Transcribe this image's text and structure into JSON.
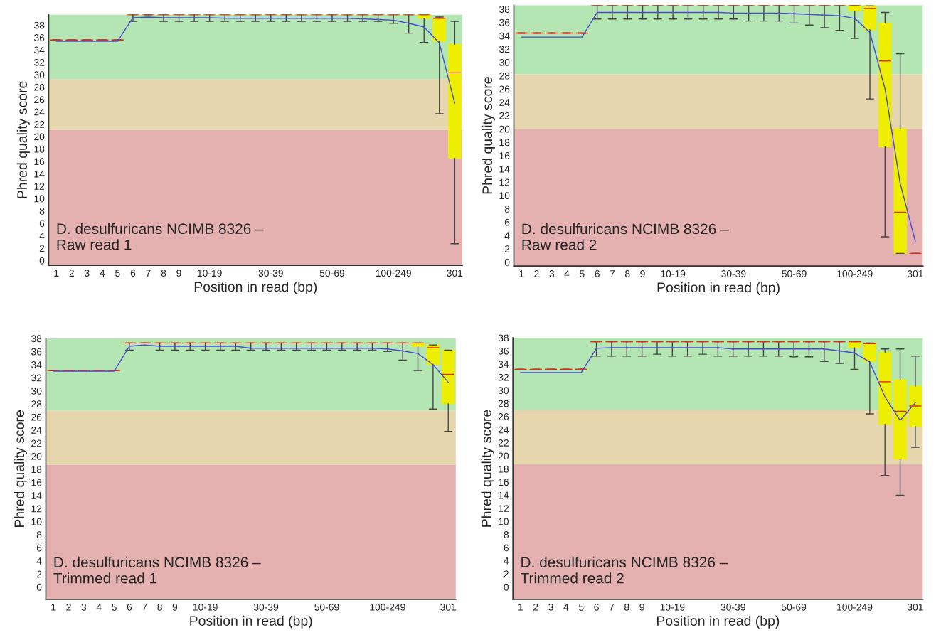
{
  "chart_data": [
    {
      "type": "box",
      "xlabel": "Position in read (bp)",
      "ylabel": "Phred quality score",
      "annotations": [
        "D. desulfuricans NCIMB 8326 –\nRaw read 1"
      ],
      "categories": [
        "1",
        "2",
        "3",
        "4",
        "5",
        "6",
        "7",
        "8",
        "9",
        null,
        "10-19",
        null,
        null,
        null,
        "30-39",
        null,
        null,
        null,
        "50-69",
        null,
        null,
        null,
        "100-249",
        null,
        null,
        null,
        "301"
      ],
      "ylim": [
        -0.8,
        39.7
      ],
      "yticks": [
        0,
        2,
        4,
        6,
        8,
        10,
        12,
        14,
        16,
        18,
        20,
        22,
        24,
        26,
        28,
        30,
        32,
        34,
        36,
        38
      ],
      "bands": [
        {
          "axis": "y",
          "from": -0.8,
          "to": 21.1,
          "color": "#e5b0b0"
        },
        {
          "axis": "y",
          "from": 21.1,
          "to": 29.3,
          "color": "#e6d6ad"
        },
        {
          "axis": "y",
          "from": 29.3,
          "to": 39.7,
          "color": "#b3e6b3"
        }
      ],
      "series": [
        {
          "color": "#eeee00",
          "boxes": [
            {
              "low": 35.6,
              "q1": 35.6,
              "median": 35.6,
              "q3": 35.6,
              "high": 35.6
            },
            {
              "low": 35.6,
              "q1": 35.6,
              "median": 35.6,
              "q3": 35.6,
              "high": 35.6
            },
            {
              "low": 35.6,
              "q1": 35.6,
              "median": 35.6,
              "q3": 35.6,
              "high": 35.6
            },
            {
              "low": 35.6,
              "q1": 35.6,
              "median": 35.6,
              "q3": 35.6,
              "high": 35.6
            },
            {
              "low": 35.6,
              "q1": 35.6,
              "median": 35.6,
              "q3": 35.6,
              "high": 35.6
            },
            {
              "low": 38.6,
              "q1": 39.7,
              "median": 39.7,
              "q3": 39.7,
              "high": 39.7
            },
            {
              "low": 39.7,
              "q1": 39.7,
              "median": 39.7,
              "q3": 39.7,
              "high": 39.7
            },
            {
              "low": 38.6,
              "q1": 39.7,
              "median": 39.7,
              "q3": 39.7,
              "high": 39.7
            },
            {
              "low": 38.6,
              "q1": 39.7,
              "median": 39.7,
              "q3": 39.7,
              "high": 39.7
            },
            {
              "low": 38.6,
              "q1": 39.7,
              "median": 39.7,
              "q3": 39.7,
              "high": 39.7
            },
            {
              "low": 38.6,
              "q1": 39.7,
              "median": 39.7,
              "q3": 39.7,
              "high": 39.7
            },
            {
              "low": 38.6,
              "q1": 39.7,
              "median": 39.7,
              "q3": 39.7,
              "high": 39.7
            },
            {
              "low": 38.6,
              "q1": 39.7,
              "median": 39.7,
              "q3": 39.7,
              "high": 39.7
            },
            {
              "low": 38.6,
              "q1": 39.7,
              "median": 39.7,
              "q3": 39.7,
              "high": 39.7
            },
            {
              "low": 38.6,
              "q1": 39.7,
              "median": 39.7,
              "q3": 39.7,
              "high": 39.7
            },
            {
              "low": 38.6,
              "q1": 39.7,
              "median": 39.7,
              "q3": 39.7,
              "high": 39.7
            },
            {
              "low": 38.6,
              "q1": 39.7,
              "median": 39.7,
              "q3": 39.7,
              "high": 39.7
            },
            {
              "low": 38.6,
              "q1": 39.7,
              "median": 39.7,
              "q3": 39.7,
              "high": 39.7
            },
            {
              "low": 38.6,
              "q1": 39.7,
              "median": 39.7,
              "q3": 39.7,
              "high": 39.7
            },
            {
              "low": 38.6,
              "q1": 39.7,
              "median": 39.7,
              "q3": 39.7,
              "high": 39.7
            },
            {
              "low": 38.6,
              "q1": 39.7,
              "median": 39.7,
              "q3": 39.7,
              "high": 39.7
            },
            {
              "low": 38.6,
              "q1": 39.7,
              "median": 39.7,
              "q3": 39.7,
              "high": 39.7
            },
            {
              "low": 38.3,
              "q1": 39.7,
              "median": 39.7,
              "q3": 39.7,
              "high": 39.7
            },
            {
              "low": 36.7,
              "q1": 39.7,
              "median": 39.7,
              "q3": 39.7,
              "high": 39.7
            },
            {
              "low": 35.2,
              "q1": 39.1,
              "median": 39.7,
              "q3": 39.7,
              "high": 39.7
            },
            {
              "low": 23.7,
              "q1": 35.4,
              "median": 39.1,
              "q3": 39.1,
              "high": 39.3
            },
            {
              "low": 2.7,
              "q1": 16.5,
              "median": 30.3,
              "q3": 34.9,
              "high": 38.6
            }
          ]
        },
        {
          "type": "line",
          "color": "#4a4ad0",
          "values": [
            35.4,
            35.4,
            35.4,
            35.4,
            35.4,
            39.2,
            39.3,
            39.2,
            39.2,
            39.2,
            39.2,
            39.1,
            39.1,
            39.1,
            39.1,
            39.1,
            39.1,
            39.1,
            39.1,
            39.1,
            39.0,
            38.9,
            38.8,
            38.3,
            37.7,
            35.1,
            25.4
          ]
        }
      ]
    },
    {
      "type": "box",
      "xlabel": "Position in read (bp)",
      "ylabel": "Phred quality score",
      "annotations": [
        "D. desulfuricans NCIMB 8326 –\nRaw read 2"
      ],
      "categories": [
        "1",
        "2",
        "3",
        "4",
        "5",
        "6",
        "7",
        "8",
        "9",
        null,
        "10-19",
        null,
        null,
        null,
        "30-39",
        null,
        null,
        null,
        "50-69",
        null,
        null,
        null,
        "100-249",
        null,
        null,
        null,
        "301"
      ],
      "ylim": [
        -0.6,
        38.6
      ],
      "yticks": [
        0,
        2,
        4,
        6,
        8,
        10,
        12,
        14,
        16,
        18,
        20,
        22,
        24,
        26,
        28,
        30,
        32,
        34,
        36,
        38
      ],
      "bands": [
        {
          "axis": "y",
          "from": -0.6,
          "to": 20.0,
          "color": "#e5b0b0"
        },
        {
          "axis": "y",
          "from": 20.0,
          "to": 28.2,
          "color": "#e6d6ad"
        },
        {
          "axis": "y",
          "from": 28.2,
          "to": 38.6,
          "color": "#b3e6b3"
        }
      ],
      "series": [
        {
          "color": "#eeee00",
          "boxes": [
            {
              "low": 34.4,
              "q1": 34.4,
              "median": 34.4,
              "q3": 34.4,
              "high": 34.4
            },
            {
              "low": 34.4,
              "q1": 34.4,
              "median": 34.4,
              "q3": 34.4,
              "high": 34.4
            },
            {
              "low": 34.4,
              "q1": 34.4,
              "median": 34.4,
              "q3": 34.4,
              "high": 34.4
            },
            {
              "low": 34.4,
              "q1": 34.4,
              "median": 34.4,
              "q3": 34.4,
              "high": 34.4
            },
            {
              "low": 34.4,
              "q1": 34.4,
              "median": 34.4,
              "q3": 34.4,
              "high": 34.4
            },
            {
              "low": 36.5,
              "q1": 38.6,
              "median": 38.6,
              "q3": 38.6,
              "high": 38.6
            },
            {
              "low": 36.5,
              "q1": 38.6,
              "median": 38.6,
              "q3": 38.6,
              "high": 38.6
            },
            {
              "low": 36.5,
              "q1": 38.6,
              "median": 38.6,
              "q3": 38.6,
              "high": 38.6
            },
            {
              "low": 36.5,
              "q1": 38.6,
              "median": 38.6,
              "q3": 38.6,
              "high": 38.6
            },
            {
              "low": 36.5,
              "q1": 38.6,
              "median": 38.6,
              "q3": 38.6,
              "high": 38.6
            },
            {
              "low": 36.5,
              "q1": 38.6,
              "median": 38.6,
              "q3": 38.6,
              "high": 38.6
            },
            {
              "low": 36.5,
              "q1": 38.6,
              "median": 38.6,
              "q3": 38.6,
              "high": 38.6
            },
            {
              "low": 36.5,
              "q1": 38.6,
              "median": 38.6,
              "q3": 38.6,
              "high": 38.6
            },
            {
              "low": 36.5,
              "q1": 38.6,
              "median": 38.6,
              "q3": 38.6,
              "high": 38.6
            },
            {
              "low": 36.5,
              "q1": 38.6,
              "median": 38.6,
              "q3": 38.6,
              "high": 38.6
            },
            {
              "low": 36.2,
              "q1": 38.6,
              "median": 38.6,
              "q3": 38.6,
              "high": 38.6
            },
            {
              "low": 36.2,
              "q1": 38.6,
              "median": 38.6,
              "q3": 38.6,
              "high": 38.6
            },
            {
              "low": 36.2,
              "q1": 38.6,
              "median": 38.6,
              "q3": 38.6,
              "high": 38.6
            },
            {
              "low": 35.9,
              "q1": 38.6,
              "median": 38.6,
              "q3": 38.6,
              "high": 38.6
            },
            {
              "low": 35.6,
              "q1": 38.6,
              "median": 38.6,
              "q3": 38.6,
              "high": 38.6
            },
            {
              "low": 35.2,
              "q1": 38.6,
              "median": 38.6,
              "q3": 38.6,
              "high": 38.6
            },
            {
              "low": 34.8,
              "q1": 38.6,
              "median": 38.6,
              "q3": 38.6,
              "high": 38.6
            },
            {
              "low": 33.6,
              "q1": 37.7,
              "median": 38.6,
              "q3": 38.6,
              "high": 38.6
            },
            {
              "low": 24.5,
              "q1": 34.9,
              "median": 38.1,
              "q3": 38.5,
              "high": 38.5
            },
            {
              "low": 3.8,
              "q1": 17.3,
              "median": 30.2,
              "q3": 35.9,
              "high": 37.5
            },
            {
              "low": 1.3,
              "q1": 1.3,
              "median": 7.5,
              "q3": 20.0,
              "high": 31.3
            },
            {
              "low": 1.3,
              "q1": 1.3,
              "median": 1.3,
              "q3": 1.3,
              "high": 1.3
            }
          ]
        },
        {
          "type": "line",
          "color": "#4a4ad0",
          "values": [
            33.8,
            33.8,
            33.8,
            33.8,
            33.8,
            37.5,
            37.5,
            37.5,
            37.5,
            37.5,
            37.5,
            37.5,
            37.5,
            37.5,
            37.4,
            37.4,
            37.4,
            37.4,
            37.3,
            37.2,
            37.1,
            37.0,
            36.6,
            34.5,
            26.0,
            11.8,
            3.1
          ]
        }
      ]
    },
    {
      "type": "box",
      "xlabel": "Position in read (bp)",
      "ylabel": "Phred quality score",
      "annotations": [
        "D. desulfuricans NCIMB 8326 –\nTrimmed read 1"
      ],
      "categories": [
        "1",
        "2",
        "3",
        "4",
        "5",
        "6",
        "7",
        "8",
        "9",
        null,
        "10-19",
        null,
        null,
        null,
        "30-39",
        null,
        null,
        null,
        "50-69",
        null,
        null,
        null,
        "100-249",
        null,
        null,
        null,
        "301"
      ],
      "ylim": [
        -1.9,
        38.0
      ],
      "yticks": [
        0,
        2,
        4,
        6,
        8,
        10,
        12,
        14,
        16,
        18,
        20,
        22,
        24,
        26,
        28,
        30,
        32,
        34,
        36,
        38
      ],
      "bands": [
        {
          "axis": "y",
          "from": -1.9,
          "to": 18.7,
          "color": "#e5b0b0"
        },
        {
          "axis": "y",
          "from": 18.7,
          "to": 27.0,
          "color": "#e6d6ad"
        },
        {
          "axis": "y",
          "from": 27.0,
          "to": 38.0,
          "color": "#b3e6b3"
        }
      ],
      "series": [
        {
          "color": "#eeee00",
          "boxes": [
            {
              "low": 33.1,
              "q1": 33.1,
              "median": 33.1,
              "q3": 33.1,
              "high": 33.1
            },
            {
              "low": 33.1,
              "q1": 33.1,
              "median": 33.1,
              "q3": 33.1,
              "high": 33.1
            },
            {
              "low": 33.1,
              "q1": 33.1,
              "median": 33.1,
              "q3": 33.1,
              "high": 33.1
            },
            {
              "low": 33.1,
              "q1": 33.1,
              "median": 33.1,
              "q3": 33.1,
              "high": 33.1
            },
            {
              "low": 33.1,
              "q1": 33.1,
              "median": 33.1,
              "q3": 33.1,
              "high": 33.1
            },
            {
              "low": 36.2,
              "q1": 37.3,
              "median": 37.3,
              "q3": 37.3,
              "high": 37.3
            },
            {
              "low": 37.3,
              "q1": 37.3,
              "median": 37.3,
              "q3": 37.3,
              "high": 37.3
            },
            {
              "low": 36.2,
              "q1": 37.3,
              "median": 37.3,
              "q3": 37.3,
              "high": 37.3
            },
            {
              "low": 36.2,
              "q1": 37.3,
              "median": 37.3,
              "q3": 37.3,
              "high": 37.3
            },
            {
              "low": 36.2,
              "q1": 37.3,
              "median": 37.3,
              "q3": 37.3,
              "high": 37.3
            },
            {
              "low": 36.2,
              "q1": 37.3,
              "median": 37.3,
              "q3": 37.3,
              "high": 37.3
            },
            {
              "low": 36.2,
              "q1": 37.3,
              "median": 37.3,
              "q3": 37.3,
              "high": 37.3
            },
            {
              "low": 36.2,
              "q1": 37.3,
              "median": 37.3,
              "q3": 37.3,
              "high": 37.3
            },
            {
              "low": 36.2,
              "q1": 37.3,
              "median": 37.3,
              "q3": 37.3,
              "high": 37.3
            },
            {
              "low": 36.2,
              "q1": 37.3,
              "median": 37.3,
              "q3": 37.3,
              "high": 37.3
            },
            {
              "low": 36.2,
              "q1": 37.3,
              "median": 37.3,
              "q3": 37.3,
              "high": 37.3
            },
            {
              "low": 36.2,
              "q1": 37.3,
              "median": 37.3,
              "q3": 37.3,
              "high": 37.3
            },
            {
              "low": 36.2,
              "q1": 37.3,
              "median": 37.3,
              "q3": 37.3,
              "high": 37.3
            },
            {
              "low": 36.2,
              "q1": 37.3,
              "median": 37.3,
              "q3": 37.3,
              "high": 37.3
            },
            {
              "low": 36.2,
              "q1": 37.3,
              "median": 37.3,
              "q3": 37.3,
              "high": 37.3
            },
            {
              "low": 36.2,
              "q1": 37.3,
              "median": 37.3,
              "q3": 37.3,
              "high": 37.3
            },
            {
              "low": 36.2,
              "q1": 37.3,
              "median": 37.3,
              "q3": 37.3,
              "high": 37.3
            },
            {
              "low": 36.0,
              "q1": 37.3,
              "median": 37.3,
              "q3": 37.3,
              "high": 37.3
            },
            {
              "low": 34.7,
              "q1": 37.3,
              "median": 37.3,
              "q3": 37.3,
              "high": 37.3
            },
            {
              "low": 33.1,
              "q1": 36.8,
              "median": 37.3,
              "q3": 37.3,
              "high": 37.3
            },
            {
              "low": 27.2,
              "q1": 34.0,
              "median": 36.6,
              "q3": 37.0,
              "high": 37.0
            },
            {
              "low": 23.8,
              "q1": 28.0,
              "median": 32.5,
              "q3": 36.2,
              "high": 36.2
            }
          ]
        },
        {
          "type": "line",
          "color": "#4a4ad0",
          "values": [
            33.0,
            33.0,
            33.0,
            33.0,
            33.0,
            36.8,
            37.0,
            36.8,
            36.8,
            36.8,
            36.8,
            36.8,
            36.8,
            36.5,
            36.5,
            36.5,
            36.5,
            36.5,
            36.5,
            36.5,
            36.5,
            36.5,
            36.4,
            36.1,
            35.7,
            34.0,
            31.3
          ]
        }
      ]
    },
    {
      "type": "box",
      "xlabel": "Position in read (bp)",
      "ylabel": "Phred quality score",
      "annotations": [
        "D. desulfuricans NCIMB 8326 –\nTrimmed read 2"
      ],
      "categories": [
        "1",
        "2",
        "3",
        "4",
        "5",
        "6",
        "7",
        "8",
        "9",
        null,
        "10-19",
        null,
        null,
        null,
        "30-39",
        null,
        null,
        null,
        "50-69",
        null,
        null,
        null,
        "100-249",
        null,
        null,
        null,
        "301"
      ],
      "ylim": [
        -1.9,
        38.0
      ],
      "yticks": [
        0,
        2,
        4,
        6,
        8,
        10,
        12,
        14,
        16,
        18,
        20,
        22,
        24,
        26,
        28,
        30,
        32,
        34,
        36,
        38
      ],
      "bands": [
        {
          "axis": "y",
          "from": -1.9,
          "to": 18.7,
          "color": "#e5b0b0"
        },
        {
          "axis": "y",
          "from": 18.7,
          "to": 27.0,
          "color": "#e6d6ad"
        },
        {
          "axis": "y",
          "from": 27.0,
          "to": 38.0,
          "color": "#b3e6b3"
        }
      ],
      "series": [
        {
          "color": "#eeee00",
          "boxes": [
            {
              "low": 33.2,
              "q1": 33.2,
              "median": 33.2,
              "q3": 33.2,
              "high": 33.2
            },
            {
              "low": 33.2,
              "q1": 33.2,
              "median": 33.2,
              "q3": 33.2,
              "high": 33.2
            },
            {
              "low": 33.2,
              "q1": 33.2,
              "median": 33.2,
              "q3": 33.2,
              "high": 33.2
            },
            {
              "low": 33.2,
              "q1": 33.2,
              "median": 33.2,
              "q3": 33.2,
              "high": 33.2
            },
            {
              "low": 33.2,
              "q1": 33.2,
              "median": 33.2,
              "q3": 33.2,
              "high": 33.2
            },
            {
              "low": 35.2,
              "q1": 37.4,
              "median": 37.4,
              "q3": 37.4,
              "high": 37.4
            },
            {
              "low": 35.2,
              "q1": 37.4,
              "median": 37.4,
              "q3": 37.4,
              "high": 37.4
            },
            {
              "low": 35.2,
              "q1": 37.4,
              "median": 37.4,
              "q3": 37.4,
              "high": 37.4
            },
            {
              "low": 35.2,
              "q1": 37.4,
              "median": 37.4,
              "q3": 37.4,
              "high": 37.4
            },
            {
              "low": 35.5,
              "q1": 37.4,
              "median": 37.4,
              "q3": 37.4,
              "high": 37.4
            },
            {
              "low": 35.2,
              "q1": 37.4,
              "median": 37.4,
              "q3": 37.4,
              "high": 37.4
            },
            {
              "low": 35.2,
              "q1": 37.4,
              "median": 37.4,
              "q3": 37.4,
              "high": 37.4
            },
            {
              "low": 35.5,
              "q1": 37.4,
              "median": 37.4,
              "q3": 37.4,
              "high": 37.4
            },
            {
              "low": 35.2,
              "q1": 37.4,
              "median": 37.4,
              "q3": 37.4,
              "high": 37.4
            },
            {
              "low": 35.2,
              "q1": 37.4,
              "median": 37.4,
              "q3": 37.4,
              "high": 37.4
            },
            {
              "low": 35.2,
              "q1": 37.4,
              "median": 37.4,
              "q3": 37.4,
              "high": 37.4
            },
            {
              "low": 35.2,
              "q1": 37.4,
              "median": 37.4,
              "q3": 37.4,
              "high": 37.4
            },
            {
              "low": 35.2,
              "q1": 37.4,
              "median": 37.4,
              "q3": 37.4,
              "high": 37.4
            },
            {
              "low": 35.1,
              "q1": 37.4,
              "median": 37.4,
              "q3": 37.4,
              "high": 37.4
            },
            {
              "low": 35.1,
              "q1": 37.4,
              "median": 37.4,
              "q3": 37.4,
              "high": 37.4
            },
            {
              "low": 34.4,
              "q1": 37.4,
              "median": 37.4,
              "q3": 37.4,
              "high": 37.4
            },
            {
              "low": 34.1,
              "q1": 37.4,
              "median": 37.4,
              "q3": 37.4,
              "high": 37.4
            },
            {
              "low": 33.2,
              "q1": 36.5,
              "median": 37.4,
              "q3": 37.4,
              "high": 37.4
            },
            {
              "low": 26.4,
              "q1": 34.4,
              "median": 37.1,
              "q3": 37.2,
              "high": 37.2
            },
            {
              "low": 17.0,
              "q1": 24.8,
              "median": 31.3,
              "q3": 35.8,
              "high": 36.3
            },
            {
              "low": 14.0,
              "q1": 19.5,
              "median": 26.8,
              "q3": 31.6,
              "high": 36.3
            },
            {
              "low": 21.3,
              "q1": 24.5,
              "median": 27.6,
              "q3": 30.6,
              "high": 35.2
            }
          ]
        },
        {
          "type": "line",
          "color": "#4a4ad0",
          "values": [
            32.7,
            32.7,
            32.7,
            32.7,
            32.7,
            36.4,
            36.5,
            36.5,
            36.5,
            36.5,
            36.5,
            36.5,
            36.5,
            36.5,
            36.3,
            36.3,
            36.3,
            36.3,
            36.3,
            36.3,
            36.3,
            36.0,
            35.7,
            34.3,
            29.0,
            25.4,
            28.1
          ]
        }
      ]
    }
  ]
}
